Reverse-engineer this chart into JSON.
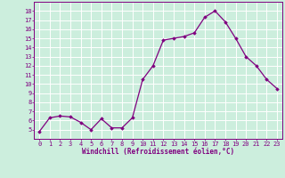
{
  "x": [
    0,
    1,
    2,
    3,
    4,
    5,
    6,
    7,
    8,
    9,
    10,
    11,
    12,
    13,
    14,
    15,
    16,
    17,
    18,
    19,
    20,
    21,
    22,
    23
  ],
  "y": [
    4.8,
    6.3,
    6.5,
    6.4,
    5.8,
    5.0,
    6.2,
    5.2,
    5.2,
    6.3,
    10.5,
    12.0,
    14.8,
    15.0,
    15.2,
    15.6,
    17.3,
    18.0,
    16.8,
    15.0,
    13.0,
    12.0,
    10.5,
    9.5
  ],
  "xlabel": "Windchill (Refroidissement éolien,°C)",
  "ylim": [
    4,
    19
  ],
  "xlim": [
    -0.5,
    23.5
  ],
  "yticks": [
    5,
    6,
    7,
    8,
    9,
    10,
    11,
    12,
    13,
    14,
    15,
    16,
    17,
    18
  ],
  "xticks": [
    0,
    1,
    2,
    3,
    4,
    5,
    6,
    7,
    8,
    9,
    10,
    11,
    12,
    13,
    14,
    15,
    16,
    17,
    18,
    19,
    20,
    21,
    22,
    23
  ],
  "line_color": "#800080",
  "marker_color": "#800080",
  "bg_color": "#cceedd",
  "grid_color": "#ffffff",
  "axis_label_color": "#800080",
  "tick_color": "#800080",
  "spine_color": "#800080",
  "tick_fontsize": 5.0,
  "xlabel_fontsize": 5.5
}
